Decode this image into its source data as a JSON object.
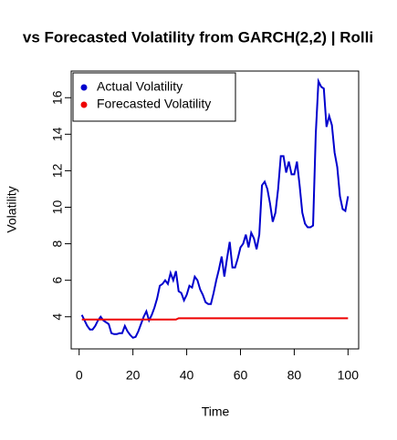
{
  "chart_data": {
    "type": "line",
    "title": "vs Forecasted Volatility from GARCH(2,2) | Rolli",
    "x_label": "Time",
    "y_label": "Volatility",
    "x": [
      1,
      2,
      3,
      4,
      5,
      6,
      7,
      8,
      9,
      10,
      11,
      12,
      13,
      14,
      15,
      16,
      17,
      18,
      19,
      20,
      21,
      22,
      23,
      24,
      25,
      26,
      27,
      28,
      29,
      30,
      31,
      32,
      33,
      34,
      35,
      36,
      37,
      38,
      39,
      40,
      41,
      42,
      43,
      44,
      45,
      46,
      47,
      48,
      49,
      50,
      51,
      52,
      53,
      54,
      55,
      56,
      57,
      58,
      59,
      60,
      61,
      62,
      63,
      64,
      65,
      66,
      67,
      68,
      69,
      70,
      71,
      72,
      73,
      74,
      75,
      76,
      77,
      78,
      79,
      80,
      81,
      82,
      83,
      84,
      85,
      86,
      87,
      88,
      89,
      90,
      91,
      92,
      93,
      94,
      95,
      96,
      97,
      98,
      99,
      100
    ],
    "series": [
      {
        "name": "Actual Volatility",
        "color": "#0000cd",
        "values": [
          4.1,
          3.8,
          3.5,
          3.3,
          3.3,
          3.5,
          3.8,
          4.0,
          3.8,
          3.7,
          3.6,
          3.1,
          3.05,
          3.05,
          3.1,
          3.1,
          3.5,
          3.2,
          3.0,
          2.85,
          2.9,
          3.2,
          3.6,
          4.0,
          4.3,
          3.8,
          4.1,
          4.5,
          5.0,
          5.7,
          5.8,
          6.0,
          5.8,
          6.4,
          6.0,
          6.5,
          5.4,
          5.3,
          4.9,
          5.2,
          5.7,
          5.6,
          6.2,
          6.0,
          5.5,
          5.2,
          4.8,
          4.7,
          4.7,
          5.3,
          6.0,
          6.6,
          7.3,
          6.2,
          7.2,
          8.1,
          6.7,
          6.7,
          7.2,
          7.8,
          8.0,
          8.5,
          7.8,
          8.6,
          8.3,
          7.7,
          8.5,
          11.2,
          11.4,
          11.0,
          10.2,
          9.2,
          9.7,
          11.0,
          12.8,
          12.8,
          11.9,
          12.5,
          11.8,
          11.8,
          12.5,
          11.2,
          9.7,
          9.1,
          8.9,
          8.9,
          9.0,
          14.0,
          16.9,
          16.6,
          16.5,
          14.4,
          15.0,
          14.5,
          13.0,
          12.2,
          10.6,
          9.9,
          9.8,
          10.6
        ]
      },
      {
        "name": "Forecasted Volatility",
        "color": "#ee0000",
        "values": [
          3.85,
          3.85,
          3.85,
          3.85,
          3.85,
          3.85,
          3.85,
          3.85,
          3.85,
          3.85,
          3.85,
          3.85,
          3.85,
          3.85,
          3.85,
          3.85,
          3.85,
          3.85,
          3.85,
          3.85,
          3.85,
          3.85,
          3.85,
          3.85,
          3.85,
          3.85,
          3.85,
          3.85,
          3.85,
          3.85,
          3.85,
          3.85,
          3.85,
          3.85,
          3.85,
          3.85,
          3.92,
          3.92,
          3.92,
          3.92,
          3.92,
          3.92,
          3.92,
          3.92,
          3.92,
          3.92,
          3.92,
          3.92,
          3.92,
          3.92,
          3.92,
          3.92,
          3.92,
          3.92,
          3.92,
          3.92,
          3.92,
          3.92,
          3.92,
          3.92,
          3.92,
          3.92,
          3.92,
          3.92,
          3.92,
          3.92,
          3.92,
          3.92,
          3.92,
          3.92,
          3.92,
          3.92,
          3.92,
          3.92,
          3.92,
          3.92,
          3.92,
          3.92,
          3.92,
          3.92,
          3.92,
          3.92,
          3.92,
          3.92,
          3.92,
          3.92,
          3.92,
          3.92,
          3.92,
          3.92,
          3.92,
          3.92,
          3.92,
          3.92,
          3.92,
          3.92,
          3.92,
          3.92,
          3.92,
          3.92
        ]
      }
    ],
    "xlim": [
      -2.96,
      103.96
    ],
    "xticks": [
      0,
      20,
      40,
      60,
      80,
      100
    ],
    "ylim": [
      2.24,
      17.46
    ],
    "yticks": [
      4,
      6,
      8,
      10,
      12,
      14,
      16
    ],
    "legend": "top-left"
  }
}
